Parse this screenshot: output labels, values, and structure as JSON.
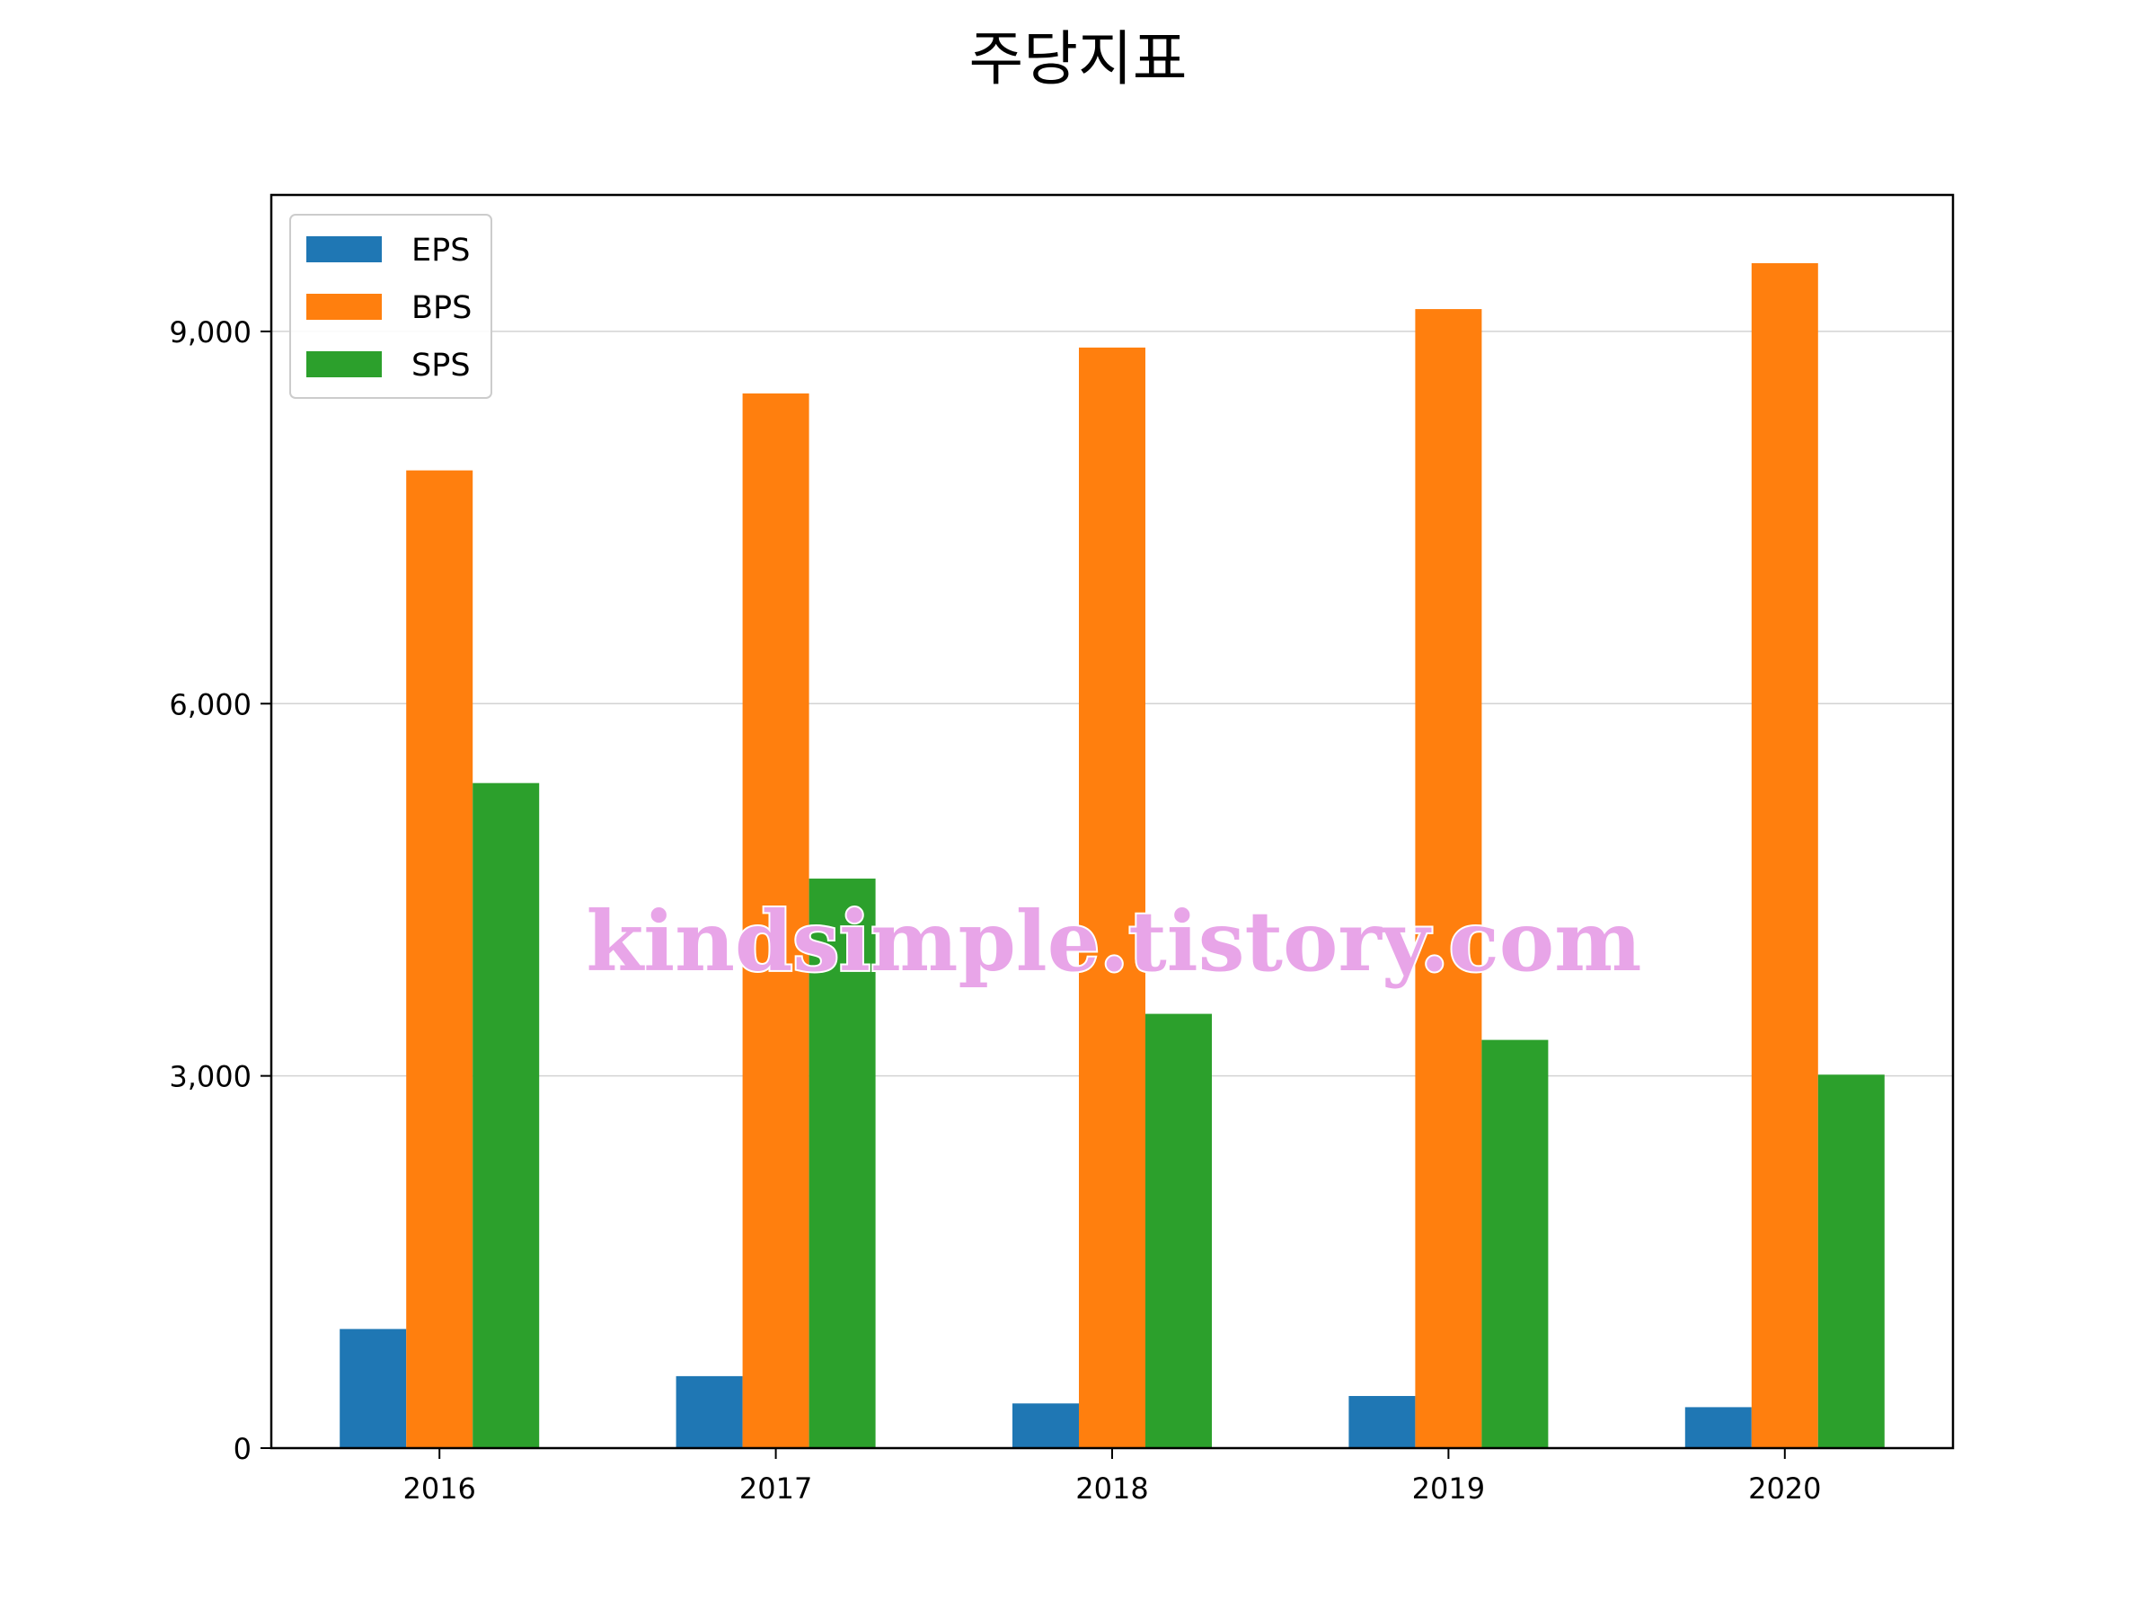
{
  "chart_data": {
    "type": "bar",
    "title": "주당지표",
    "xlabel": "",
    "ylabel": "",
    "categories": [
      "2016",
      "2017",
      "2018",
      "2019",
      "2020"
    ],
    "series": [
      {
        "name": "EPS",
        "color": "#1f77b4",
        "values": [
          960,
          580,
          360,
          420,
          330
        ]
      },
      {
        "name": "BPS",
        "color": "#ff7f0e",
        "values": [
          7880,
          8500,
          8870,
          9180,
          9550
        ]
      },
      {
        "name": "SPS",
        "color": "#2ca02c",
        "values": [
          5360,
          4590,
          3500,
          3290,
          3010
        ]
      }
    ],
    "ylim": [
      0,
      10100
    ],
    "yticks": [
      0,
      3000,
      6000,
      9000
    ],
    "ytick_labels": [
      "0",
      "3,000",
      "6,000",
      "9,000"
    ],
    "grid": "horizontal",
    "legend": "top-left",
    "watermark": "kindsimple.tistory.com"
  }
}
